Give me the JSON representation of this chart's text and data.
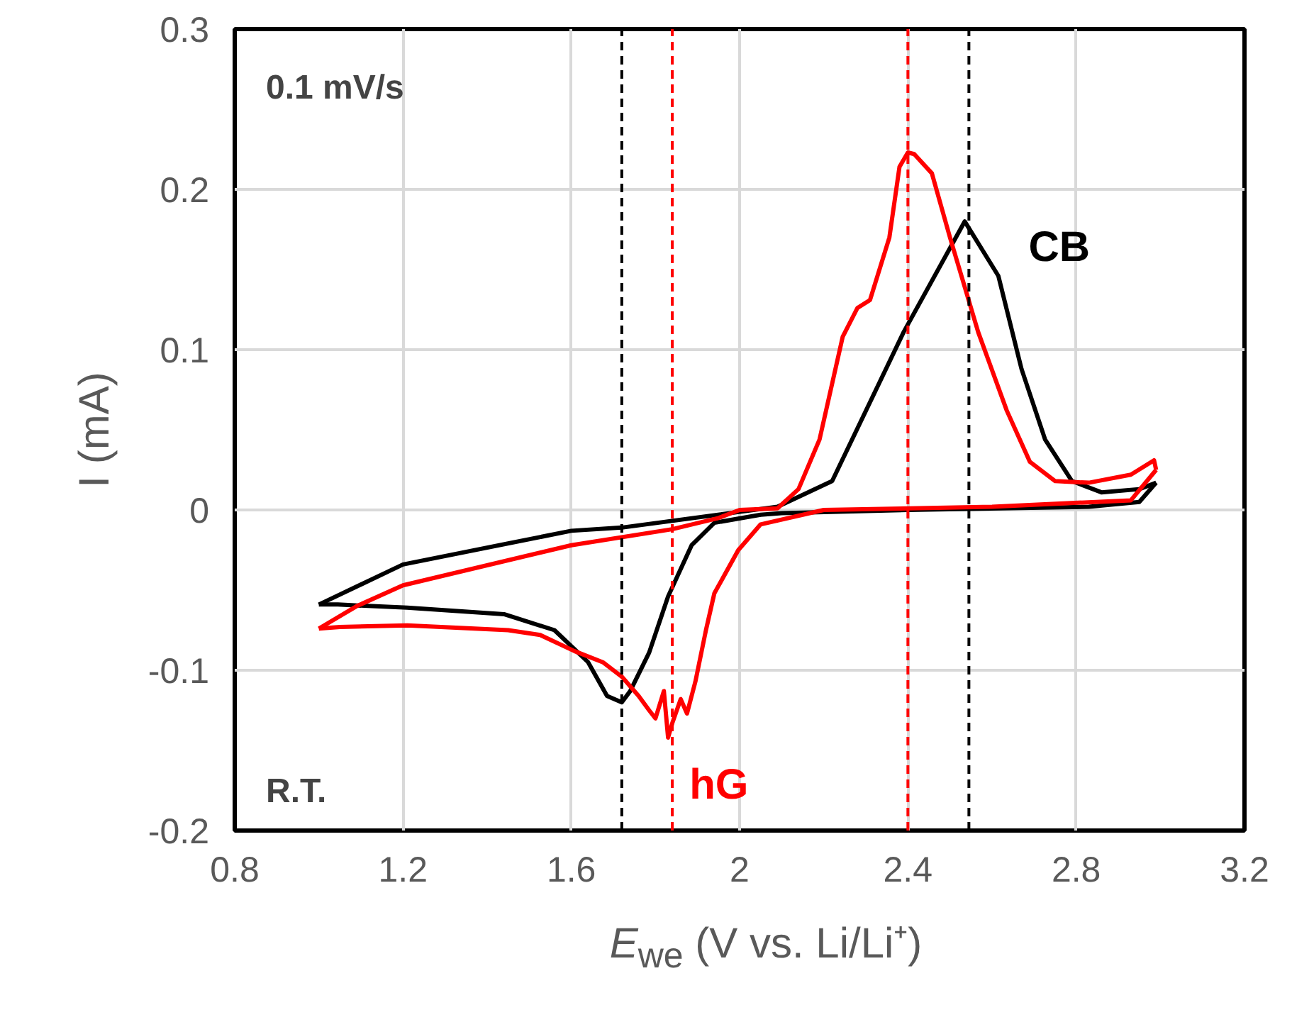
{
  "chart_data": {
    "type": "line",
    "xlabel": "E$_{we}$ (V vs. Li/Li⁺)",
    "ylabel": "I (mA)",
    "xlim": [
      0.8,
      3.2
    ],
    "xticks": [
      0.8,
      1.2,
      1.6,
      2,
      2.4,
      2.8,
      3.2
    ],
    "ylim": [
      -0.2,
      0.3
    ],
    "yticks": [
      -0.2,
      -0.1,
      0,
      0.1,
      0.2,
      0.3
    ],
    "grid": true,
    "marker": "none",
    "line_style": "solid",
    "annotations": [
      "0.1 mV/s",
      "R.T."
    ],
    "series": [
      {
        "name": "CB",
        "color": "#000000",
        "x": [
          1.0,
          1.2,
          1.6,
          1.72,
          2.09,
          2.22,
          2.39,
          2.535,
          2.615,
          2.67,
          2.726,
          2.79,
          2.86,
          2.95,
          2.99
        ],
        "values": [
          -0.059,
          -0.034,
          -0.013,
          -0.011,
          0.002,
          0.018,
          0.111,
          0.18,
          0.146,
          0.088,
          0.044,
          0.018,
          0.011,
          0.013,
          0.017
        ]
      },
      {
        "color": "#000000",
        "x": [
          2.99,
          2.95,
          2.83,
          2.4,
          2.1,
          2.05,
          1.94,
          1.886,
          1.83,
          1.785,
          1.74,
          1.72,
          1.685,
          1.64,
          1.56,
          1.44,
          1.21,
          1.045,
          1.0
        ],
        "values": [
          0.017,
          0.005,
          0.002,
          0.0,
          -0.002,
          -0.003,
          -0.008,
          -0.022,
          -0.054,
          -0.089,
          -0.113,
          -0.12,
          -0.116,
          -0.095,
          -0.075,
          -0.065,
          -0.061,
          -0.059,
          -0.059
        ]
      },
      {
        "color": "#ff0000",
        "x": [
          1.0,
          1.09,
          1.2,
          1.6,
          1.84,
          1.95,
          2.0,
          2.09,
          2.14,
          2.19,
          2.245,
          2.28,
          2.31,
          2.356,
          2.38,
          2.4,
          2.415,
          2.457,
          2.5,
          2.567,
          2.635,
          2.69,
          2.75,
          2.83,
          2.93,
          2.985,
          2.99
        ],
        "values": [
          -0.074,
          -0.06,
          -0.047,
          -0.022,
          -0.012,
          -0.005,
          0.0,
          0.001,
          0.013,
          0.044,
          0.108,
          0.126,
          0.131,
          0.17,
          0.214,
          0.223,
          0.222,
          0.21,
          0.17,
          0.111,
          0.062,
          0.03,
          0.018,
          0.017,
          0.022,
          0.031,
          0.025
        ]
      },
      {
        "name": "hG",
        "color": "#ff0000",
        "x": [
          2.99,
          2.93,
          2.6,
          2.2,
          2.05,
          1.997,
          1.94,
          1.92,
          1.895,
          1.875,
          1.86,
          1.84,
          1.83,
          1.82,
          1.8,
          1.785,
          1.76,
          1.72,
          1.675,
          1.607,
          1.526,
          1.45,
          1.21,
          1.05,
          1.0
        ],
        "values": [
          0.025,
          0.006,
          0.002,
          0.0,
          -0.009,
          -0.025,
          -0.052,
          -0.075,
          -0.107,
          -0.127,
          -0.118,
          -0.133,
          -0.142,
          -0.113,
          -0.13,
          -0.125,
          -0.116,
          -0.104,
          -0.095,
          -0.088,
          -0.078,
          -0.075,
          -0.072,
          -0.073,
          -0.074
        ]
      }
    ],
    "ref_lines": [
      {
        "axis": "x",
        "value": 1.72,
        "color": "#000000",
        "line_style": "dashed"
      },
      {
        "axis": "x",
        "value": 1.84,
        "color": "#ff0000",
        "line_style": "dashed"
      },
      {
        "axis": "x",
        "value": 2.4,
        "color": "#ff0000",
        "line_style": "dashed"
      },
      {
        "axis": "x",
        "value": 2.545,
        "color": "#000000",
        "line_style": "dashed"
      }
    ]
  }
}
